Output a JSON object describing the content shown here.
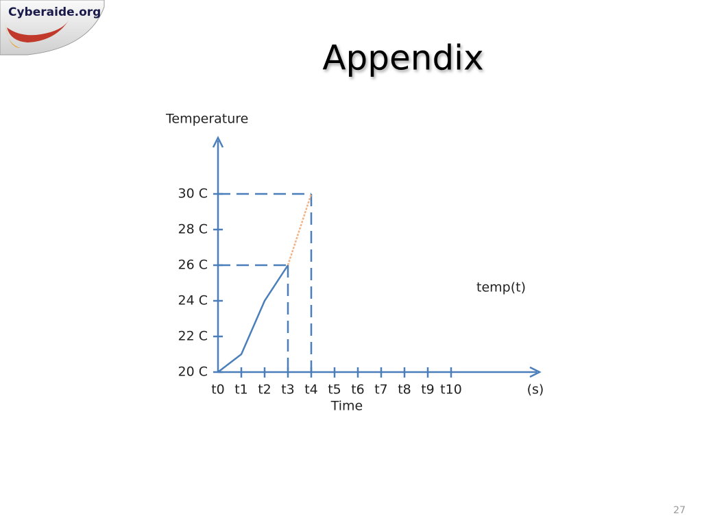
{
  "logo": "Cyberaide.org",
  "title": "Appendix",
  "page_number": "27",
  "chart_data": {
    "type": "line",
    "y_label": "Temperature",
    "x_label": "Time",
    "x_unit": "(s)",
    "categories": [
      "t0",
      "t1",
      "t2",
      "t3",
      "t4",
      "t5",
      "t6",
      "t7",
      "t8",
      "t9",
      "t10"
    ],
    "series": [
      {
        "name": "temp(t)",
        "color": "#4a7ebb",
        "values": [
          20,
          21,
          24,
          26,
          null,
          null,
          null,
          null,
          null,
          null,
          null
        ]
      },
      {
        "color": "#f4b183",
        "dashed": true,
        "values": [
          null,
          null,
          null,
          26,
          30,
          null,
          null,
          null,
          null,
          null,
          null
        ]
      }
    ],
    "ylim": [
      20,
      33
    ],
    "yticks": [
      {
        "value": 20,
        "label": "20 C"
      },
      {
        "value": 22,
        "label": "22 C"
      },
      {
        "value": 24,
        "label": "24 C"
      },
      {
        "value": 26,
        "label": "26 C"
      },
      {
        "value": 28,
        "label": "28 C"
      },
      {
        "value": 30,
        "label": "30 C"
      }
    ],
    "grid": false
  }
}
